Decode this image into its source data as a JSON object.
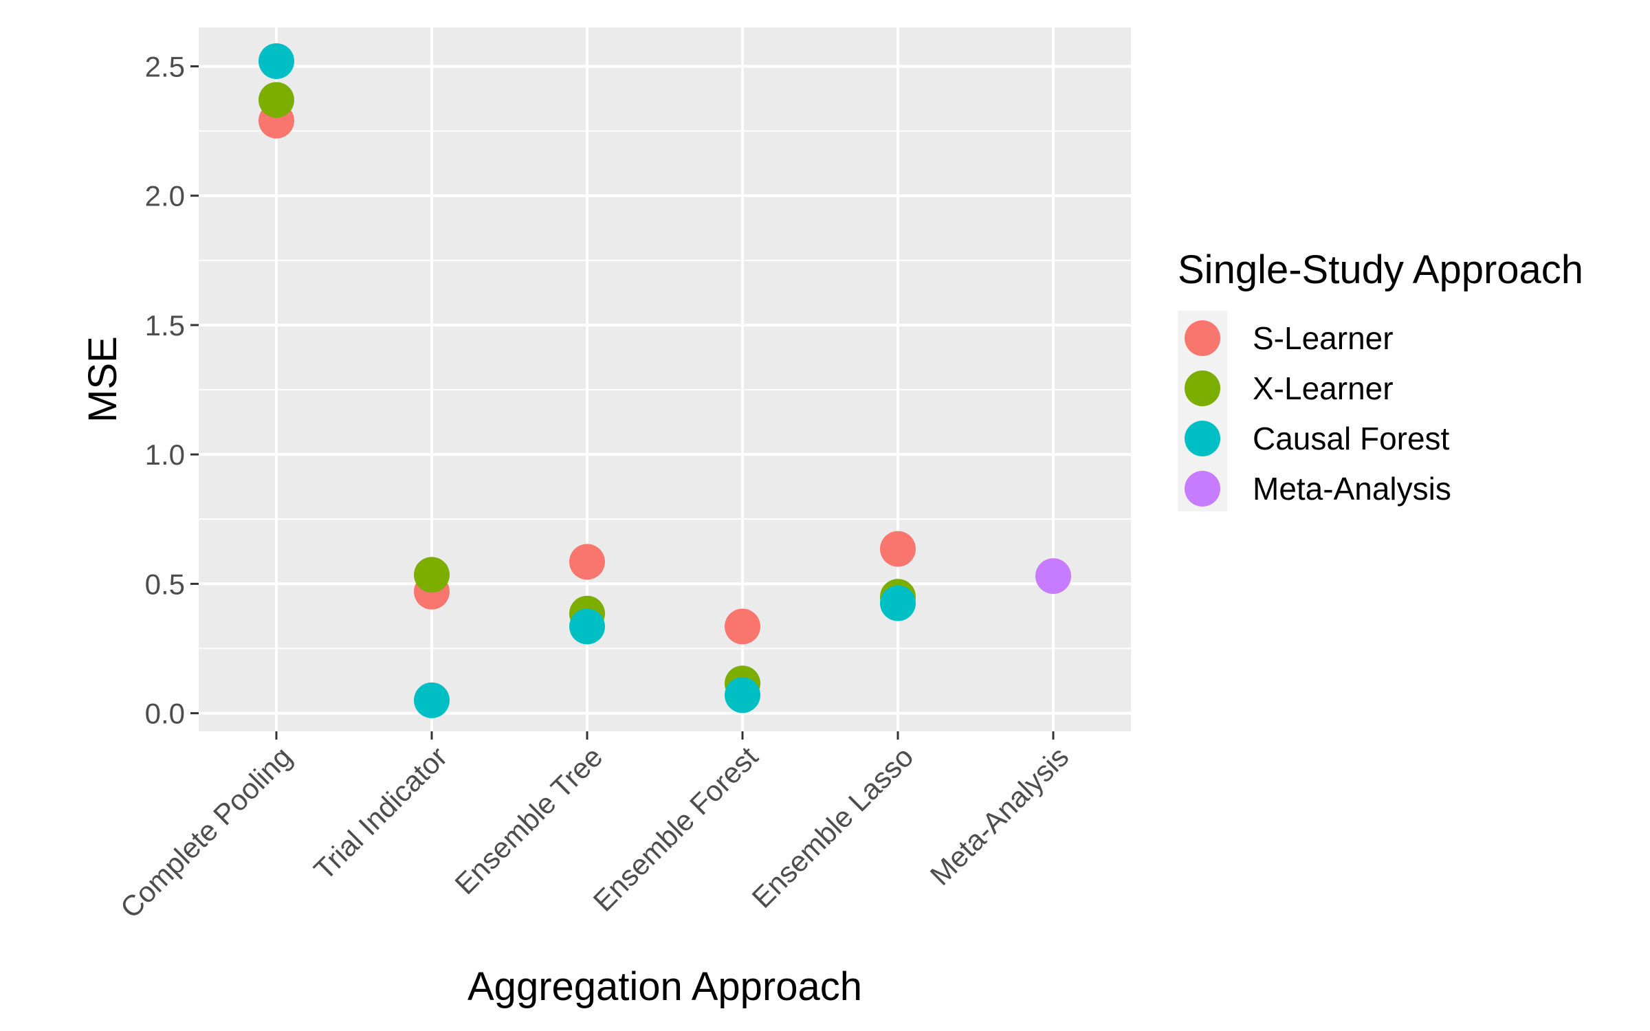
{
  "chart_data": {
    "type": "scatter",
    "title": "",
    "xlabel": "Aggregation Approach",
    "ylabel": "MSE",
    "ylim": [
      -0.07,
      2.65
    ],
    "yticks": [
      0.0,
      0.5,
      1.0,
      1.5,
      2.0,
      2.5
    ],
    "ytick_labels": [
      "0.0",
      "0.5",
      "1.0",
      "1.5",
      "2.0",
      "2.5"
    ],
    "categories": [
      "Complete Pooling",
      "Trial Indicator",
      "Ensemble Tree",
      "Ensemble Forest",
      "Ensemble Lasso",
      "Meta-Analysis"
    ],
    "grid": true,
    "legend": {
      "title": "Single-Study Approach",
      "placement": "right"
    },
    "series": [
      {
        "name": "S-Learner",
        "color": "#F8766D",
        "values": [
          2.29,
          0.47,
          0.585,
          0.335,
          0.635,
          null
        ]
      },
      {
        "name": "X-Learner",
        "color": "#7CAE00",
        "values": [
          2.37,
          0.535,
          0.385,
          0.115,
          0.45,
          null
        ]
      },
      {
        "name": "Causal Forest",
        "color": "#00BFC4",
        "values": [
          2.52,
          0.05,
          0.335,
          0.07,
          0.425,
          null
        ]
      },
      {
        "name": "Meta-Analysis",
        "color": "#C77CFF",
        "values": [
          null,
          null,
          null,
          null,
          null,
          0.53
        ]
      }
    ]
  }
}
